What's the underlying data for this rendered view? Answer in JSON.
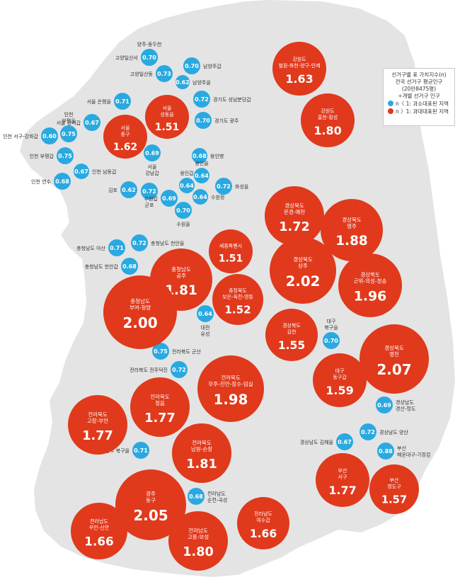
{
  "colors": {
    "map_fill": "#e4e4e4",
    "over_represented": "#e0391c",
    "under_represented": "#2aa9e0",
    "label_text": "#333333"
  },
  "legend": {
    "title": "선거구별 표 가치지수(n)",
    "line2": "전국 선거구 평균인구",
    "line3": "(20만8475명)",
    "line4": "÷개별 선거구 인구",
    "item_under": "n〈 1: 과소대표된 지역",
    "item_over": "n 〉1: 과대대표된 지역"
  },
  "districts": [
    {
      "label": "양주-동두천",
      "value": "0.70",
      "type": "under"
    },
    {
      "label": "고양일산서",
      "value": "0.70",
      "type": "under"
    },
    {
      "label": "남양주갑",
      "value": "0.70",
      "type": "under"
    },
    {
      "label": "고양일산동",
      "value": "0.73",
      "type": "under"
    },
    {
      "label": "남양주을",
      "value": "0.62",
      "type": "under"
    },
    {
      "label": "서울 은평을",
      "value": "0.71",
      "type": "under"
    },
    {
      "label": "경기도 성남분당갑",
      "value": "0.72",
      "type": "under"
    },
    {
      "label": "서울 강서갑",
      "value": "0.67",
      "type": "under"
    },
    {
      "label": "경기도 광주",
      "value": "0.70",
      "type": "under"
    },
    {
      "label": "인천 부평을",
      "value": "0.75",
      "type": "under"
    },
    {
      "label": "인천 서구-강화갑",
      "value": "0.60",
      "type": "under"
    },
    {
      "label": "서울 강남갑",
      "value": "0.69",
      "type": "under"
    },
    {
      "label": "용인병",
      "value": "0.68",
      "type": "under"
    },
    {
      "label": "인천 부평갑",
      "value": "0.75",
      "type": "under"
    },
    {
      "label": "인천 남동갑",
      "value": "0.67",
      "type": "under"
    },
    {
      "label": "인천 연수",
      "value": "0.68",
      "type": "under"
    },
    {
      "label": "용인을",
      "value": "0.64",
      "type": "under"
    },
    {
      "label": "용인갑",
      "value": "0.64",
      "type": "under"
    },
    {
      "label": "화성을",
      "value": "0.72",
      "type": "under"
    },
    {
      "label": "김포",
      "value": "0.62",
      "type": "under"
    },
    {
      "label": "군포",
      "value": "0.72",
      "type": "under"
    },
    {
      "label": "수원갑",
      "value": "0.69",
      "type": "under"
    },
    {
      "label": "수원정",
      "value": "0.64",
      "type": "under"
    },
    {
      "label": "수원을",
      "value": "0.70",
      "type": "under"
    },
    {
      "label": "충청남도 아산",
      "value": "0.71",
      "type": "under"
    },
    {
      "label": "충청남도 천안을",
      "value": "0.72",
      "type": "under"
    },
    {
      "label": "충청남도 천안갑",
      "value": "0.68",
      "type": "under"
    },
    {
      "label": "대전 유성",
      "value": "0.64",
      "type": "under"
    },
    {
      "label": "대구 북구을",
      "value": "0.70",
      "type": "under"
    },
    {
      "label": "전라북도 군산",
      "value": "0.75",
      "type": "under"
    },
    {
      "label": "전라북도 전주덕진",
      "value": "0.72",
      "type": "under"
    },
    {
      "label": "경상남도 경산-청도",
      "value": "0.69",
      "type": "under"
    },
    {
      "label": "경상남도 양산",
      "value": "0.72",
      "type": "under"
    },
    {
      "label": "경상남도 김해을",
      "value": "0.67",
      "type": "under"
    },
    {
      "label": "부산 해운대구-기장갑",
      "value": "0.88",
      "type": "under"
    },
    {
      "label": "광주 북구을",
      "value": "0.71",
      "type": "under"
    },
    {
      "label": "전라남도 순천-곡성",
      "value": "0.68",
      "type": "under"
    },
    {
      "label": "강원도 철원-화천-양구-인제",
      "value": "1.63",
      "type": "over"
    },
    {
      "label": "강원도 홍천-횡성",
      "value": "1.80",
      "type": "over"
    },
    {
      "label": "서울 성동을",
      "value": "1.51",
      "type": "over"
    },
    {
      "label": "서울 중구",
      "value": "1.62",
      "type": "over"
    },
    {
      "label": "경상북도 문경-예천",
      "value": "1.72",
      "type": "over"
    },
    {
      "label": "경상북도 영주",
      "value": "1.88",
      "type": "over"
    },
    {
      "label": "세종특별시",
      "value": "1.51",
      "type": "over"
    },
    {
      "label": "충청남도 공주",
      "value": "1.81",
      "type": "over"
    },
    {
      "label": "경상북도 상주",
      "value": "2.02",
      "type": "over"
    },
    {
      "label": "경상북도 군위-의성-청송",
      "value": "1.96",
      "type": "over"
    },
    {
      "label": "충청북도 보은-옥천-영동",
      "value": "1.52",
      "type": "over"
    },
    {
      "label": "충청남도 부여-청양",
      "value": "2.00",
      "type": "over"
    },
    {
      "label": "경상북도 김천",
      "value": "1.55",
      "type": "over"
    },
    {
      "label": "경상북도 영천",
      "value": "2.07",
      "type": "over"
    },
    {
      "label": "대구 동구갑",
      "value": "1.59",
      "type": "over"
    },
    {
      "label": "전라북도 무주-진안-장수-임실",
      "value": "1.98",
      "type": "over"
    },
    {
      "label": "전라북도 정읍",
      "value": "1.77",
      "type": "over"
    },
    {
      "label": "전라북도 고창-부안",
      "value": "1.77",
      "type": "over"
    },
    {
      "label": "전라북도 남원-순창",
      "value": "1.81",
      "type": "over"
    },
    {
      "label": "광주 동구",
      "value": "2.05",
      "type": "over"
    },
    {
      "label": "부산 서구",
      "value": "1.77",
      "type": "over"
    },
    {
      "label": "부산 영도구",
      "value": "1.57",
      "type": "over"
    },
    {
      "label": "전라남도 무안-신안",
      "value": "1.66",
      "type": "over"
    },
    {
      "label": "전라남도 고흥-보성",
      "value": "1.80",
      "type": "over"
    },
    {
      "label": "전라남도 여수갑",
      "value": "1.66",
      "type": "over"
    }
  ]
}
